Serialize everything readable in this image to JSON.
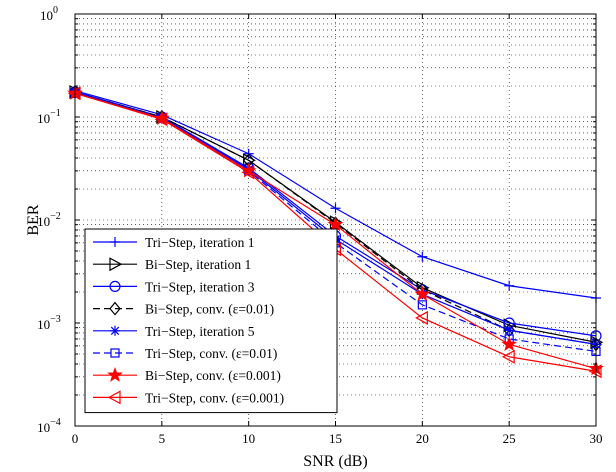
{
  "chart_data": {
    "type": "line",
    "title": "",
    "xlabel": "SNR (dB)",
    "ylabel": "BER",
    "xlim": [
      0,
      30
    ],
    "ylim": [
      0.0001,
      1
    ],
    "yscale": "log",
    "grid": true,
    "legend_position": "bottom-left",
    "x_ticks": [
      "0",
      "5",
      "10",
      "15",
      "20",
      "25",
      "30"
    ],
    "y_ticks": [
      {
        "base": "10",
        "exp": "0",
        "value": 1
      },
      {
        "base": "10",
        "exp": "−1",
        "value": 0.1
      },
      {
        "base": "10",
        "exp": "−2",
        "value": 0.01
      },
      {
        "base": "10",
        "exp": "−3",
        "value": 0.001
      },
      {
        "base": "10",
        "exp": "−4",
        "value": 0.0001
      }
    ],
    "x": [
      0,
      5,
      10,
      15,
      20,
      25,
      30
    ],
    "series": [
      {
        "name": "Tri−Step, iteration 1",
        "color": "#0000ff",
        "marker": "plus",
        "dash": "solid",
        "values": [
          0.18,
          0.105,
          0.044,
          0.013,
          0.0044,
          0.0023,
          0.00175
        ]
      },
      {
        "name": "Bi−Step, iteration 1",
        "color": "#000000",
        "marker": "triangle-right",
        "dash": "solid",
        "values": [
          0.175,
          0.1,
          0.038,
          0.0095,
          0.0022,
          0.00095,
          0.00065
        ]
      },
      {
        "name": "Tri−Step, iteration 3",
        "color": "#0000ff",
        "marker": "circle",
        "dash": "solid",
        "values": [
          0.175,
          0.1,
          0.032,
          0.007,
          0.0021,
          0.001,
          0.00075
        ]
      },
      {
        "name": "Bi−Step, conv. (ε=0.01)",
        "color": "#000000",
        "marker": "diamond",
        "dash": "dashed",
        "values": [
          0.175,
          0.1,
          0.038,
          0.0093,
          0.0021,
          0.00085,
          0.00062
        ]
      },
      {
        "name": "Tri−Step, iteration 5",
        "color": "#0000ff",
        "marker": "asterisk",
        "dash": "solid",
        "values": [
          0.175,
          0.098,
          0.031,
          0.0065,
          0.0019,
          0.00085,
          0.00062
        ]
      },
      {
        "name": "Tri−Step, conv. (ε=0.01)",
        "color": "#0000ff",
        "marker": "square",
        "dash": "dashed",
        "values": [
          0.17,
          0.097,
          0.03,
          0.006,
          0.0015,
          0.0007,
          0.00053
        ]
      },
      {
        "name": "Bi−Step, conv. (ε=0.001)",
        "color": "#ff0000",
        "marker": "star",
        "dash": "solid",
        "values": [
          0.17,
          0.097,
          0.03,
          0.009,
          0.0019,
          0.00062,
          0.00036
        ]
      },
      {
        "name": "Tri−Step, conv. (ε=0.001)",
        "color": "#ff0000",
        "marker": "triangle-left",
        "dash": "solid",
        "values": [
          0.17,
          0.095,
          0.029,
          0.0052,
          0.00112,
          0.00047,
          0.00034
        ]
      }
    ]
  }
}
